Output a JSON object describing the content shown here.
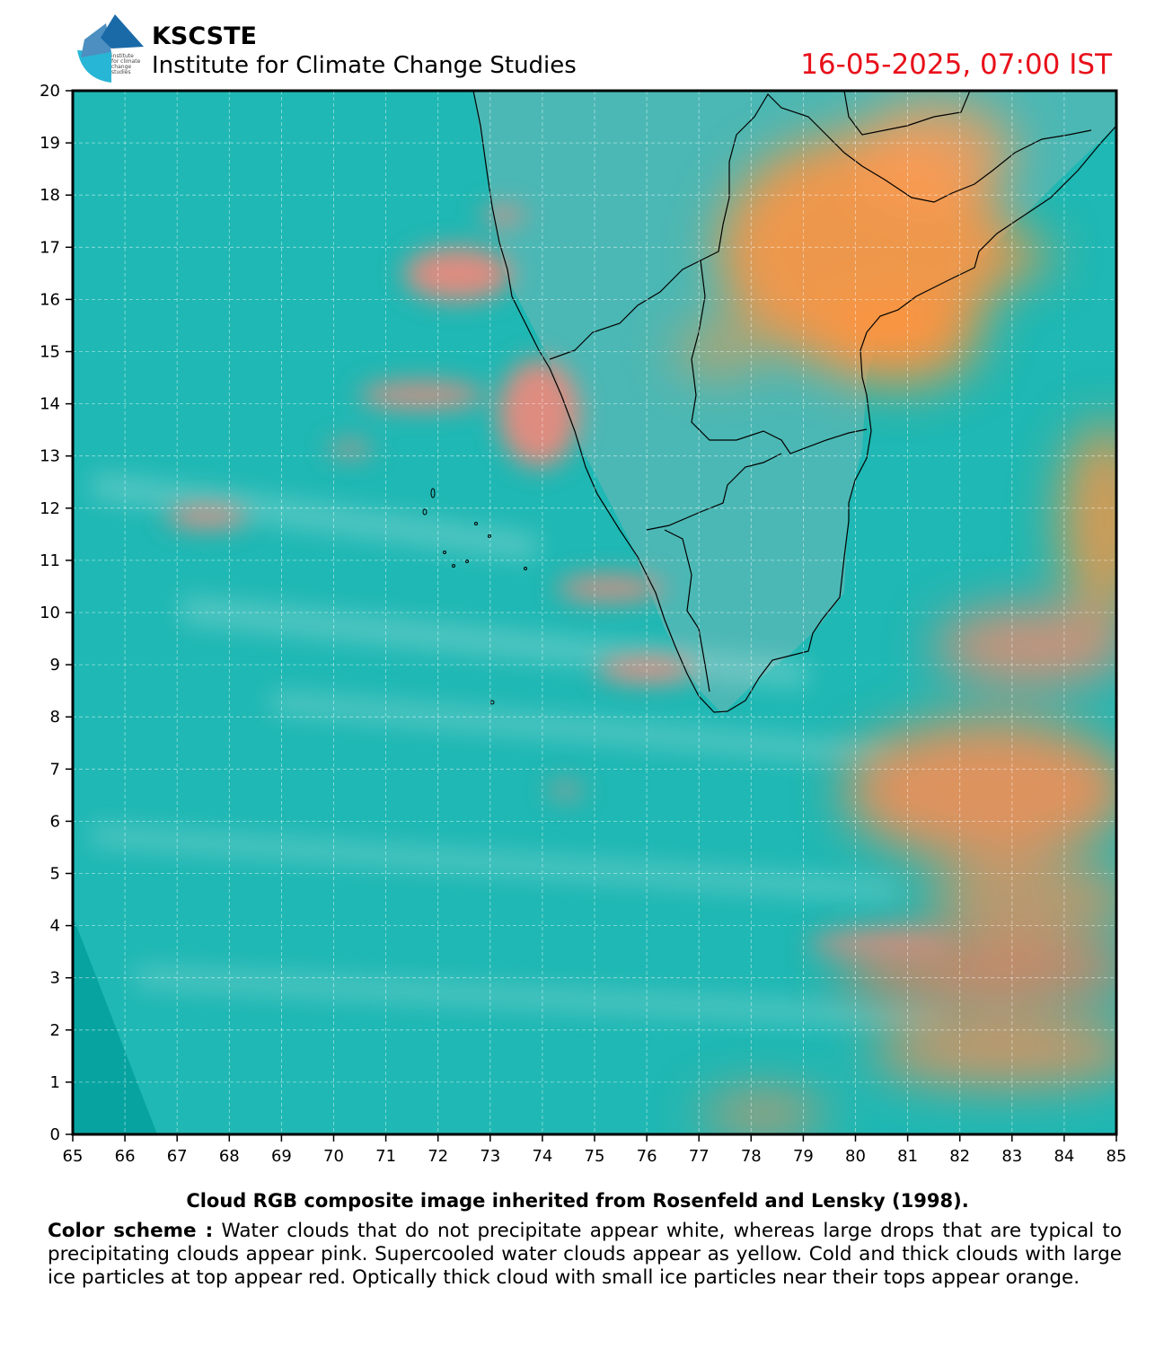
{
  "header": {
    "org_name": "KSCSTE",
    "org_subtitle": "Institute for Climate Change Studies",
    "timestamp": "16-05-2025, 07:00 IST",
    "logo_text": [
      "institute",
      "for climate",
      "change",
      "studies"
    ],
    "timestamp_color": "#e8101a"
  },
  "map": {
    "lon_range": [
      65,
      85
    ],
    "lat_range": [
      0,
      20
    ],
    "x_ticks": [
      "65",
      "66",
      "67",
      "68",
      "69",
      "70",
      "71",
      "72",
      "73",
      "74",
      "75",
      "76",
      "77",
      "78",
      "79",
      "80",
      "81",
      "82",
      "83",
      "84",
      "85"
    ],
    "y_ticks": [
      "0",
      "1",
      "2",
      "3",
      "4",
      "5",
      "6",
      "7",
      "8",
      "9",
      "10",
      "11",
      "12",
      "13",
      "14",
      "15",
      "16",
      "17",
      "18",
      "19",
      "20"
    ],
    "gridlines": true,
    "background_color": "#1fb8b4",
    "cloud_color_pink": "#f3877a",
    "cloud_color_orange": "#ff9440",
    "coastline_color": "#000000"
  },
  "footer": {
    "caption": "Cloud RGB composite image inherited from Rosenfeld and Lensky (1998).",
    "scheme_label": "Color scheme :",
    "scheme_text": " Water clouds that do not precipitate appear white, whereas large drops that are typical to precipitating clouds appear pink. Supercooled water clouds appear as yellow. Cold and thick clouds with large ice particles at top appear red. Optically thick cloud with small ice particles near their tops appear orange."
  }
}
